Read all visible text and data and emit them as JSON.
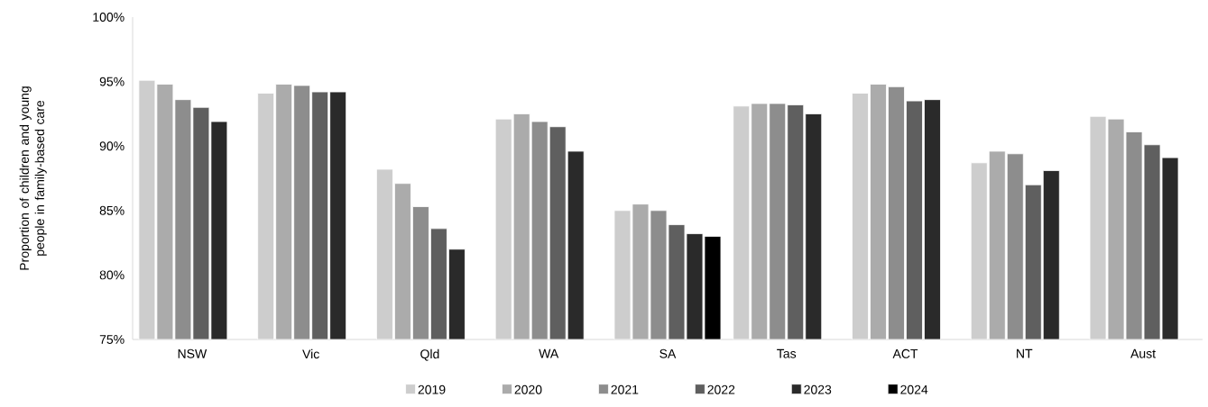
{
  "chart_data": {
    "type": "bar",
    "ylabel": "Proportion of children and young people in family-based care",
    "categories": [
      "NSW",
      "Vic",
      "Qld",
      "WA",
      "SA",
      "Tas",
      "ACT",
      "NT",
      "Aust"
    ],
    "series": [
      {
        "name": "2019",
        "color": "#cdcdcd",
        "values": [
          95.1,
          94.1,
          88.2,
          92.1,
          85.0,
          93.1,
          94.1,
          88.7,
          92.3
        ]
      },
      {
        "name": "2020",
        "color": "#ababab",
        "values": [
          94.8,
          94.8,
          87.1,
          92.5,
          85.5,
          93.3,
          94.8,
          89.6,
          92.1
        ]
      },
      {
        "name": "2021",
        "color": "#8d8d8d",
        "values": [
          93.6,
          94.7,
          85.3,
          91.9,
          85.0,
          93.3,
          94.6,
          89.4,
          91.1
        ]
      },
      {
        "name": "2022",
        "color": "#5f5f5f",
        "values": [
          93.0,
          94.2,
          83.6,
          91.5,
          83.9,
          93.2,
          93.5,
          87.0,
          90.1
        ]
      },
      {
        "name": "2023",
        "color": "#2a2a2a",
        "values": [
          91.9,
          94.2,
          82.0,
          89.6,
          83.2,
          92.5,
          93.6,
          88.1,
          89.1
        ]
      },
      {
        "name": "2024",
        "color": "#000000",
        "values": [
          null,
          null,
          null,
          null,
          83.0,
          null,
          null,
          null,
          null
        ]
      }
    ],
    "ylim": [
      75,
      100
    ],
    "yticks": [
      {
        "value": 75,
        "label": "75%"
      },
      {
        "value": 80,
        "label": "80%"
      },
      {
        "value": 85,
        "label": "85%"
      },
      {
        "value": 90,
        "label": "90%"
      },
      {
        "value": 95,
        "label": "95%"
      },
      {
        "value": 100,
        "label": "100%"
      }
    ],
    "legend": "bottom"
  }
}
